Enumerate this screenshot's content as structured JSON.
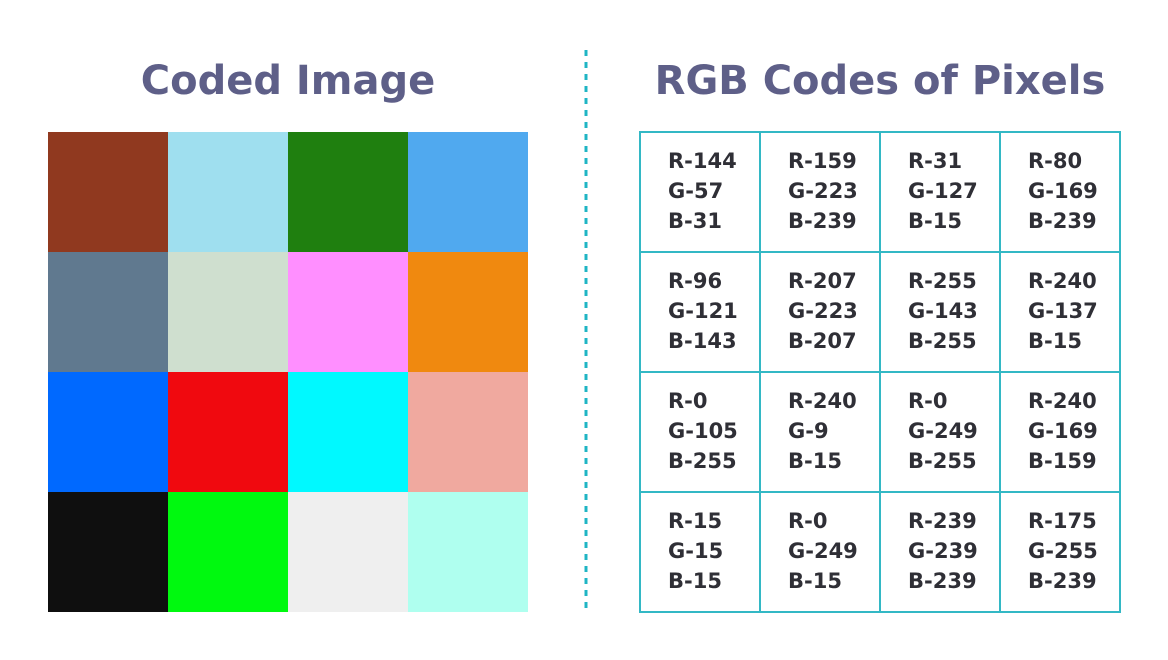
{
  "left": {
    "title": "Coded Image",
    "pixels": [
      [
        "#90391f",
        "#9fdfef",
        "#1f7f0f",
        "#50a9ef"
      ],
      [
        "#60798f",
        "#cfdfcf",
        "#ff8fff",
        "#f0890f"
      ],
      [
        "#0069ff",
        "#f0090f",
        "#00f9ff",
        "#f0a99f"
      ],
      [
        "#0f0f0f",
        "#00f90f",
        "#efefef",
        "#afffef"
      ]
    ]
  },
  "right": {
    "title": "RGB Codes of Pixels",
    "table": {
      "rows": [
        [
          [
            "R-144",
            "G-57",
            "B-31"
          ],
          [
            "R-159",
            "G-223",
            "B-239"
          ],
          [
            "R-31",
            "G-127",
            "B-15"
          ],
          [
            "R-80",
            "G-169",
            "B-239"
          ]
        ],
        [
          [
            "R-96",
            "G-121",
            "B-143"
          ],
          [
            "R-207",
            "G-223",
            "B-207"
          ],
          [
            "R-255",
            "G-143",
            "B-255"
          ],
          [
            "R-240",
            "G-137",
            "B-15"
          ]
        ],
        [
          [
            "R-0",
            "G-105",
            "B-255"
          ],
          [
            "R-240",
            "G-9",
            "B-15"
          ],
          [
            "R-0",
            "G-249",
            "B-255"
          ],
          [
            "R-240",
            "G-169",
            "B-159"
          ]
        ],
        [
          [
            "R-15",
            "G-15",
            "B-15"
          ],
          [
            "R-0",
            "G-249",
            "B-15"
          ],
          [
            "R-239",
            "G-239",
            "B-239"
          ],
          [
            "R-175",
            "G-255",
            "B-239"
          ]
        ]
      ]
    }
  }
}
